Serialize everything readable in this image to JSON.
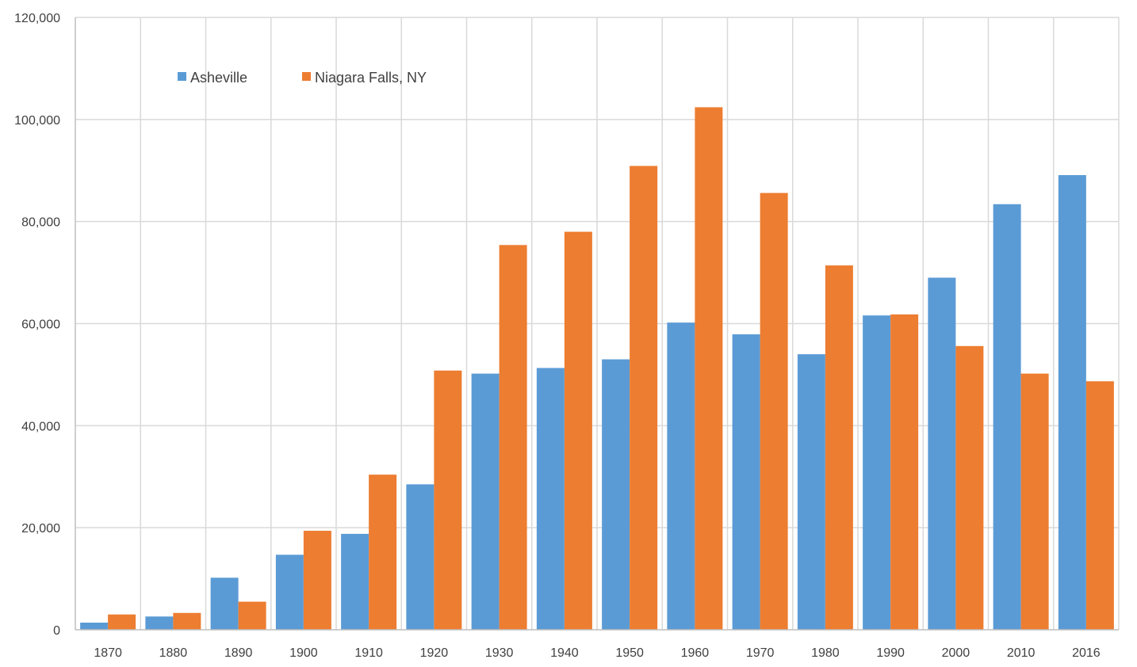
{
  "chart_data": {
    "type": "bar",
    "title": "",
    "xlabel": "",
    "ylabel": "",
    "categories": [
      "1870",
      "1880",
      "1890",
      "1900",
      "1910",
      "1920",
      "1930",
      "1940",
      "1950",
      "1960",
      "1970",
      "1980",
      "1990",
      "2000",
      "2010",
      "2016"
    ],
    "series": [
      {
        "name": "Asheville",
        "color": "#5B9BD5",
        "values": [
          1400,
          2600,
          10200,
          14700,
          18800,
          28500,
          50200,
          51300,
          53000,
          60200,
          57900,
          54000,
          61600,
          69000,
          83400,
          89100
        ]
      },
      {
        "name": "Niagara Falls, NY",
        "color": "#ED7D31",
        "values": [
          3000,
          3300,
          5500,
          19400,
          30400,
          50800,
          75400,
          78000,
          90900,
          102400,
          85600,
          71400,
          61800,
          55600,
          50200,
          48700
        ]
      }
    ],
    "ylim": [
      0,
      120000
    ],
    "yticks": [
      "0",
      "20,000",
      "40,000",
      "60,000",
      "80,000",
      "100,000",
      "120,000"
    ],
    "grid": true,
    "legend_position": "top-left"
  }
}
